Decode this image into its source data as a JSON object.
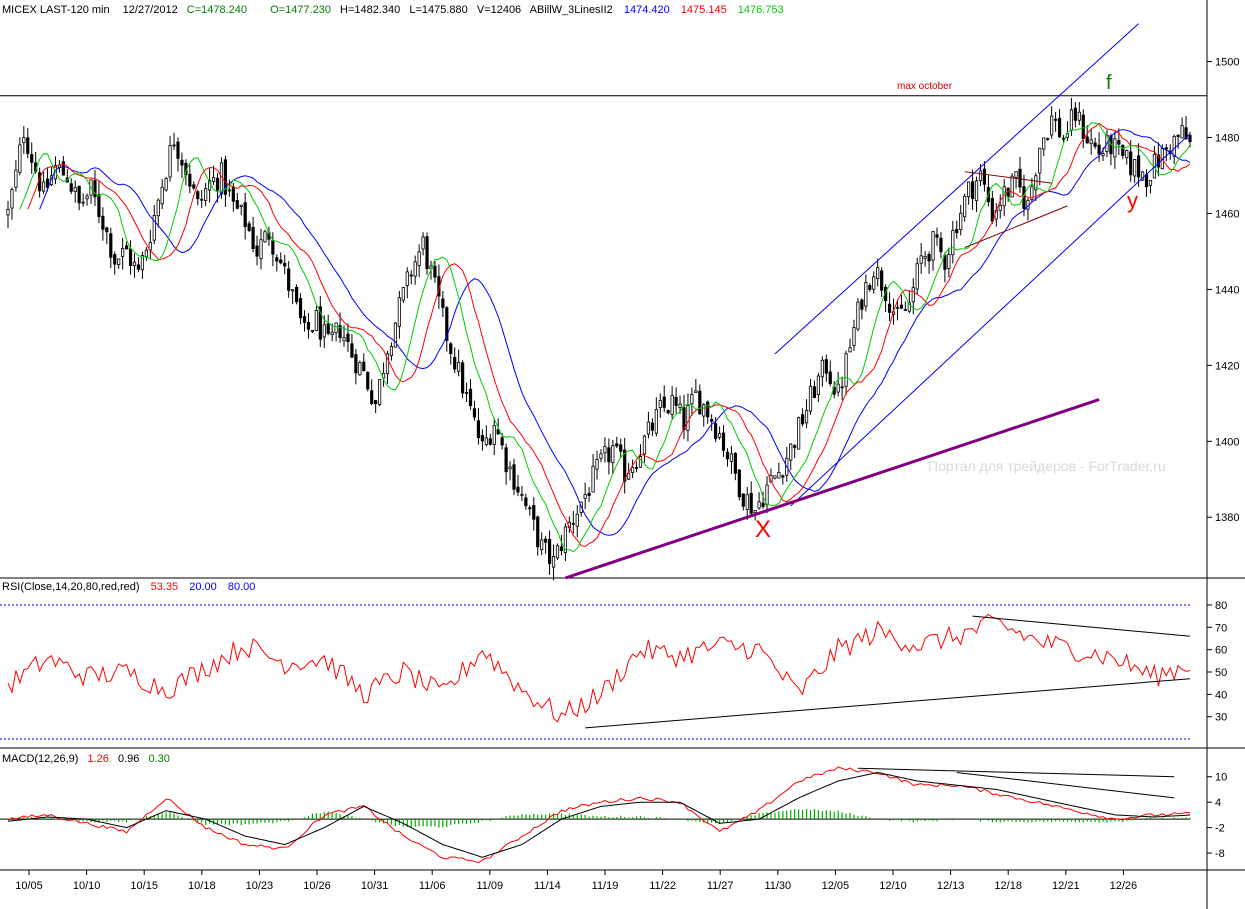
{
  "header": {
    "symbol": "MICEX LAST-120 min",
    "date": "12/27/2012",
    "close": "C=1478.240",
    "open": "O=1477.230",
    "high": "H=1482.340",
    "low": "L=1475.880",
    "volume": "V=12406",
    "indicator": "ABillW_3LinesII2",
    "ind_blue": "1474.420",
    "ind_red": "1475.145",
    "ind_green": "1476.753"
  },
  "annotations": {
    "max_october": "max october",
    "f": "f",
    "x": "X",
    "y": "y",
    "watermark": "Портал для трейдеров - ForTrader.ru"
  },
  "rsi_header": {
    "label": "RSI(Close,14,20,80,red,red)",
    "value": "53.35",
    "low": "20.00",
    "high": "80.00"
  },
  "macd_header": {
    "label": "MACD(12,26,9)",
    "macd": "1.26",
    "signal": "0.96",
    "hist": "0.30"
  },
  "colors": {
    "candle": "#000000",
    "ma_green": "#00cc00",
    "ma_red": "#ff0000",
    "ma_blue": "#0000ff",
    "channel": "#0000ff",
    "support": "#800080",
    "rsi": "#ff0000",
    "macd": "#ff0000",
    "signal": "#000000",
    "hist": "#00aa00",
    "level_line": "#0000ff"
  },
  "chart_data": [
    {
      "type": "candlestick",
      "panel": "price",
      "ylim": [
        1364,
        1512
      ],
      "yticks": [
        1380,
        1400,
        1420,
        1440,
        1460,
        1480,
        1500
      ],
      "hline": 1491,
      "xticks": [
        "10/05",
        "10/10",
        "10/15",
        "10/18",
        "10/23",
        "10/26",
        "10/31",
        "11/06",
        "11/09",
        "11/14",
        "11/19",
        "11/22",
        "11/27",
        "11/30",
        "12/05",
        "12/10",
        "12/13",
        "12/18",
        "12/21",
        "12/26"
      ],
      "close_path": [
        [
          0,
          1460
        ],
        [
          2,
          1470
        ],
        [
          4,
          1482
        ],
        [
          6,
          1475
        ],
        [
          9,
          1465
        ],
        [
          12,
          1472
        ],
        [
          15,
          1470
        ],
        [
          18,
          1462
        ],
        [
          21,
          1466
        ],
        [
          24,
          1458
        ],
        [
          27,
          1448
        ],
        [
          30,
          1450
        ],
        [
          33,
          1444
        ],
        [
          36,
          1455
        ],
        [
          39,
          1468
        ],
        [
          42,
          1480
        ],
        [
          45,
          1472
        ],
        [
          48,
          1462
        ],
        [
          51,
          1468
        ],
        [
          54,
          1470
        ],
        [
          57,
          1462
        ],
        [
          60,
          1458
        ],
        [
          63,
          1450
        ],
        [
          66,
          1455
        ],
        [
          69,
          1447
        ],
        [
          72,
          1438
        ],
        [
          75,
          1428
        ],
        [
          78,
          1432
        ],
        [
          81,
          1425
        ],
        [
          84,
          1430
        ],
        [
          87,
          1423
        ],
        [
          90,
          1418
        ],
        [
          93,
          1410
        ],
        [
          96,
          1425
        ],
        [
          99,
          1435
        ],
        [
          102,
          1445
        ],
        [
          105,
          1452
        ],
        [
          108,
          1440
        ],
        [
          111,
          1428
        ],
        [
          114,
          1418
        ],
        [
          117,
          1408
        ],
        [
          120,
          1398
        ],
        [
          123,
          1405
        ],
        [
          126,
          1395
        ],
        [
          129,
          1388
        ],
        [
          132,
          1380
        ],
        [
          135,
          1372
        ],
        [
          138,
          1368
        ],
        [
          141,
          1376
        ],
        [
          144,
          1382
        ],
        [
          147,
          1388
        ],
        [
          150,
          1394
        ],
        [
          153,
          1398
        ],
        [
          156,
          1392
        ],
        [
          159,
          1396
        ],
        [
          162,
          1402
        ],
        [
          165,
          1408
        ],
        [
          168,
          1410
        ],
        [
          171,
          1405
        ],
        [
          174,
          1412
        ],
        [
          177,
          1408
        ],
        [
          180,
          1402
        ],
        [
          183,
          1394
        ],
        [
          186,
          1386
        ],
        [
          189,
          1382
        ],
        [
          192,
          1388
        ],
        [
          195,
          1392
        ],
        [
          198,
          1398
        ],
        [
          201,
          1406
        ],
        [
          204,
          1414
        ],
        [
          207,
          1420
        ],
        [
          210,
          1412
        ],
        [
          213,
          1425
        ],
        [
          216,
          1438
        ],
        [
          219,
          1446
        ],
        [
          222,
          1440
        ],
        [
          225,
          1432
        ],
        [
          228,
          1436
        ],
        [
          231,
          1448
        ],
        [
          234,
          1452
        ],
        [
          237,
          1448
        ],
        [
          240,
          1458
        ],
        [
          243,
          1466
        ],
        [
          246,
          1470
        ],
        [
          249,
          1460
        ],
        [
          252,
          1465
        ],
        [
          255,
          1468
        ],
        [
          258,
          1462
        ],
        [
          261,
          1478
        ],
        [
          264,
          1485
        ],
        [
          267,
          1480
        ],
        [
          270,
          1486
        ],
        [
          273,
          1480
        ],
        [
          276,
          1476
        ],
        [
          279,
          1478
        ],
        [
          282,
          1474
        ],
        [
          285,
          1472
        ],
        [
          288,
          1470
        ],
        [
          291,
          1474
        ],
        [
          294,
          1478
        ],
        [
          297,
          1481
        ],
        [
          299,
          1478
        ]
      ]
    },
    {
      "type": "line",
      "panel": "rsi",
      "ylim": [
        16,
        84
      ],
      "yticks": [
        30,
        40,
        50,
        60,
        70,
        80
      ],
      "levels": [
        20,
        80
      ],
      "x": [
        0,
        10,
        20,
        30,
        40,
        50,
        60,
        70,
        80,
        90,
        100,
        110,
        120,
        130,
        140,
        150,
        160,
        170,
        180,
        190,
        200,
        210,
        220,
        230,
        240,
        250,
        260,
        270,
        280,
        290,
        299
      ],
      "values": [
        44,
        56,
        48,
        50,
        42,
        52,
        62,
        54,
        56,
        40,
        50,
        40,
        60,
        42,
        30,
        40,
        60,
        57,
        62,
        60,
        40,
        60,
        68,
        62,
        66,
        72,
        64,
        60,
        56,
        48,
        53.35
      ]
    },
    {
      "type": "line",
      "panel": "macd",
      "ylim": [
        -12,
        13
      ],
      "yticks": [
        -8,
        -2,
        4,
        10
      ],
      "x": [
        0,
        10,
        20,
        30,
        40,
        50,
        60,
        70,
        80,
        90,
        100,
        110,
        120,
        130,
        140,
        150,
        160,
        170,
        180,
        190,
        200,
        210,
        220,
        230,
        240,
        250,
        260,
        270,
        280,
        290,
        299
      ],
      "macd": [
        0,
        1,
        -1,
        -3,
        5,
        -2,
        -6,
        -7,
        1,
        3,
        -4,
        -9,
        -10,
        -4,
        2,
        4,
        5,
        4,
        -3,
        2,
        9,
        12,
        11,
        8,
        8,
        6,
        4,
        2,
        0,
        1,
        1.26
      ],
      "signal": [
        -0.5,
        0.5,
        0,
        -2,
        2,
        0,
        -4,
        -6,
        -2,
        3,
        -1,
        -6,
        -9,
        -6,
        0,
        3,
        4,
        4,
        -1,
        0,
        5,
        9,
        11,
        9,
        8,
        7,
        5,
        3,
        1,
        0.5,
        0.96
      ]
    }
  ]
}
